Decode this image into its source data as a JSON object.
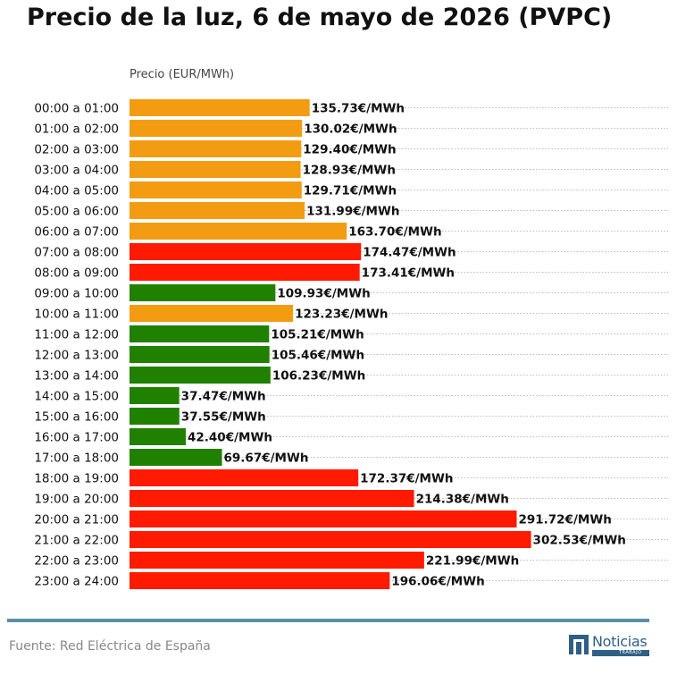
{
  "chart_data": {
    "type": "bar",
    "orientation": "horizontal",
    "title": "Precio de la luz, 6 de mayo de 2026 (PVPC)",
    "xlabel": "Precio (EUR/MWh)",
    "ylabel": "",
    "value_suffix": "€/MWh",
    "grid": "dotted",
    "categories": [
      "00:00 a 01:00",
      "01:00 a 02:00",
      "02:00 a 03:00",
      "03:00 a 04:00",
      "04:00 a 05:00",
      "05:00 a 06:00",
      "06:00 a 07:00",
      "07:00 a 08:00",
      "08:00 a 09:00",
      "09:00 a 10:00",
      "10:00 a 11:00",
      "11:00 a 12:00",
      "12:00 a 13:00",
      "13:00 a 14:00",
      "14:00 a 15:00",
      "15:00 a 16:00",
      "16:00 a 17:00",
      "17:00 a 18:00",
      "18:00 a 19:00",
      "19:00 a 20:00",
      "20:00 a 21:00",
      "21:00 a 22:00",
      "22:00 a 23:00",
      "23:00 a 24:00"
    ],
    "values": [
      135.73,
      130.02,
      129.4,
      128.93,
      129.71,
      131.99,
      163.7,
      174.47,
      173.41,
      109.93,
      123.23,
      105.21,
      105.46,
      106.23,
      37.47,
      37.55,
      42.4,
      69.67,
      172.37,
      214.38,
      291.72,
      302.53,
      221.99,
      196.06
    ],
    "value_labels": [
      "135.73€/MWh",
      "130.02€/MWh",
      "129.40€/MWh",
      "128.93€/MWh",
      "129.71€/MWh",
      "131.99€/MWh",
      "163.70€/MWh",
      "174.47€/MWh",
      "173.41€/MWh",
      "109.93€/MWh",
      "123.23€/MWh",
      "105.21€/MWh",
      "105.46€/MWh",
      "106.23€/MWh",
      "37.47€/MWh",
      "37.55€/MWh",
      "42.40€/MWh",
      "69.67€/MWh",
      "172.37€/MWh",
      "214.38€/MWh",
      "291.72€/MWh",
      "302.53€/MWh",
      "221.99€/MWh",
      "196.06€/MWh"
    ],
    "bar_levels": [
      "medium",
      "medium",
      "medium",
      "medium",
      "medium",
      "medium",
      "medium",
      "high",
      "high",
      "low",
      "medium",
      "low",
      "low",
      "low",
      "low",
      "low",
      "low",
      "low",
      "high",
      "high",
      "high",
      "high",
      "high",
      "high"
    ],
    "level_colors": {
      "low": "#208000",
      "medium": "#f39c12",
      "high": "#ff1a00"
    },
    "xlim": [
      0,
      408
    ]
  },
  "footer": {
    "source": "Fuente: Red Eléctrica de España",
    "brand": "Noticias",
    "brand_sub": "TRABAJO",
    "accent_color": "#5b8fa8"
  }
}
